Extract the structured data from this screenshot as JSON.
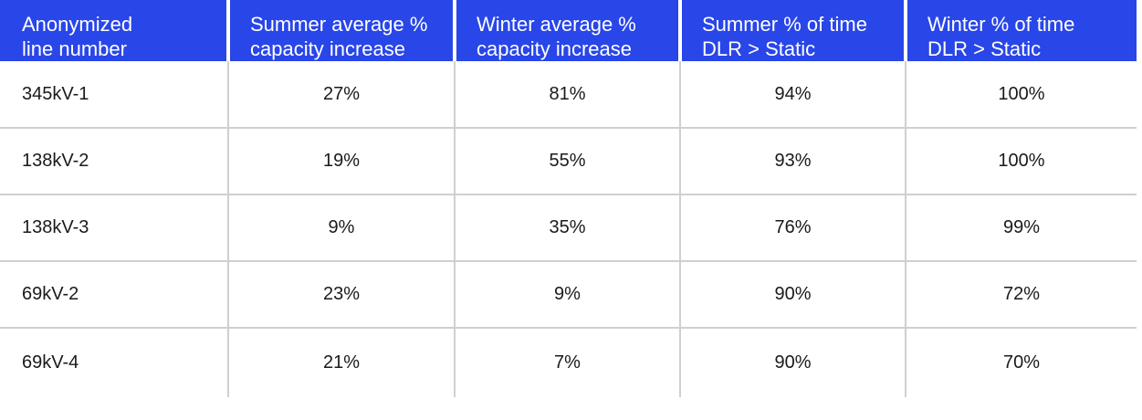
{
  "table": {
    "headers": [
      {
        "line1": "Anonymized",
        "line2": "line number"
      },
      {
        "line1": "Summer average %",
        "line2": "capacity increase"
      },
      {
        "line1": "Winter average %",
        "line2": "capacity increase"
      },
      {
        "line1": "Summer % of time",
        "line2": "DLR > Static"
      },
      {
        "line1": "Winter % of time",
        "line2": "DLR > Static"
      }
    ],
    "rows": [
      [
        "345kV-1",
        "27%",
        "81%",
        "94%",
        "100%"
      ],
      [
        "138kV-2",
        "19%",
        "55%",
        "93%",
        "100%"
      ],
      [
        "138kV-3",
        "9%",
        "35%",
        "76%",
        "99%"
      ],
      [
        "69kV-2",
        "23%",
        "9%",
        "90%",
        "72%"
      ],
      [
        "69kV-4",
        "21%",
        "7%",
        "90%",
        "70%"
      ]
    ]
  },
  "colors": {
    "header_bg": "#2946e8",
    "header_text": "#ffffff",
    "grid_line": "#cfcfcf",
    "cell_text": "#1a1a1a"
  }
}
